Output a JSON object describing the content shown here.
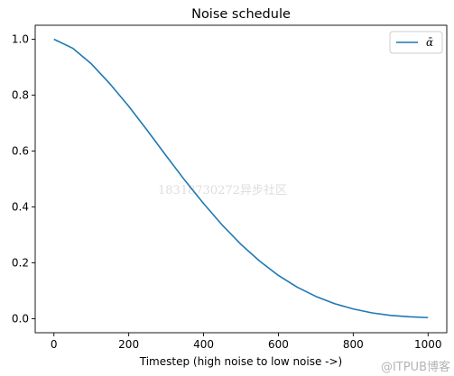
{
  "watermark_text": "18318730272异步社区",
  "footer_text": "@ITPUB博客",
  "chart_data": {
    "type": "line",
    "title": "Noise schedule",
    "xlabel": "Timestep (high noise to low noise ->)",
    "ylabel": "",
    "xlim": [
      -50,
      1050
    ],
    "ylim": [
      -0.05,
      1.05
    ],
    "xticks": [
      0,
      200,
      400,
      600,
      800,
      1000
    ],
    "xtick_labels": [
      "0",
      "200",
      "400",
      "600",
      "800",
      "1000"
    ],
    "yticks": [
      0.0,
      0.2,
      0.4,
      0.6,
      0.8,
      1.0
    ],
    "ytick_labels": [
      "0.0",
      "0.2",
      "0.4",
      "0.6",
      "0.8",
      "1.0"
    ],
    "grid": false,
    "legend_position": "top-right",
    "series": [
      {
        "name": "ᾱ",
        "color": "#1f77b4",
        "x": [
          0,
          50,
          100,
          150,
          200,
          250,
          300,
          350,
          400,
          450,
          500,
          550,
          600,
          650,
          700,
          750,
          800,
          850,
          900,
          950,
          1000
        ],
        "y": [
          1.0,
          0.968,
          0.912,
          0.84,
          0.76,
          0.673,
          0.583,
          0.495,
          0.412,
          0.335,
          0.266,
          0.206,
          0.155,
          0.113,
          0.08,
          0.054,
          0.035,
          0.021,
          0.012,
          0.007,
          0.004
        ]
      }
    ]
  }
}
